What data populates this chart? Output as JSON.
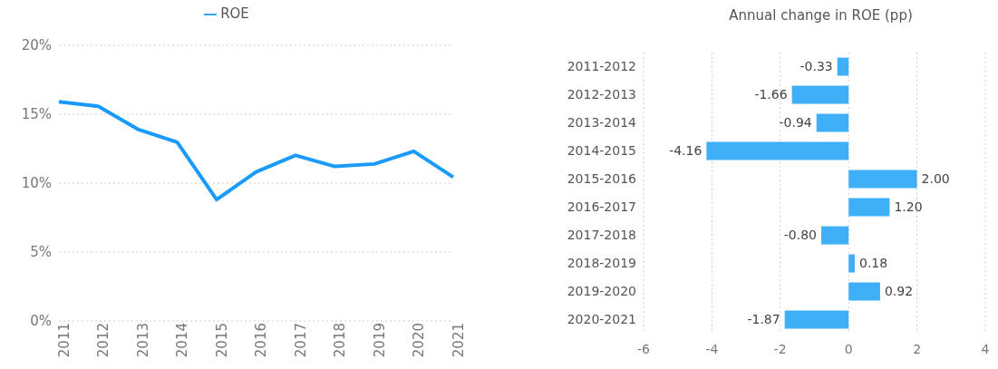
{
  "chart_data": [
    {
      "type": "line",
      "categories": [
        "2011",
        "2012",
        "2013",
        "2014",
        "2015",
        "2016",
        "2017",
        "2018",
        "2019",
        "2020",
        "2021"
      ],
      "series": [
        {
          "name": "ROE",
          "color": "#1a9bfc",
          "values": [
            15.9,
            15.57,
            13.91,
            12.97,
            8.81,
            10.81,
            12.01,
            11.21,
            11.39,
            12.31,
            10.44
          ]
        }
      ],
      "ylim": [
        0,
        20
      ],
      "yticks": [
        {
          "value": 0,
          "label": "0%"
        },
        {
          "value": 5,
          "label": "5%"
        },
        {
          "value": 10,
          "label": "10%"
        },
        {
          "value": 15,
          "label": "15%"
        },
        {
          "value": 20,
          "label": "20%"
        }
      ],
      "grid": "y",
      "legend": "top",
      "marker": "none",
      "line_style": "solid"
    },
    {
      "type": "bar",
      "orientation": "horizontal",
      "title": "Annual change in ROE (pp)",
      "categories": [
        "2011-2012",
        "2012-2013",
        "2013-2014",
        "2014-2015",
        "2015-2016",
        "2016-2017",
        "2017-2018",
        "2018-2019",
        "2019-2020",
        "2020-2021"
      ],
      "values": [
        -0.33,
        -1.66,
        -0.94,
        -4.16,
        2.0,
        1.2,
        -0.8,
        0.18,
        0.92,
        -1.87
      ],
      "value_labels": [
        "-0.33",
        "-1.66",
        "-0.94",
        "-4.16",
        "2.00",
        "1.20",
        "-0.80",
        "0.18",
        "0.92",
        "-1.87"
      ],
      "color": "#3fb0f8",
      "xlim": [
        -6,
        4
      ],
      "xticks": [
        -6,
        -4,
        -2,
        0,
        2,
        4
      ],
      "grid": "x"
    }
  ]
}
